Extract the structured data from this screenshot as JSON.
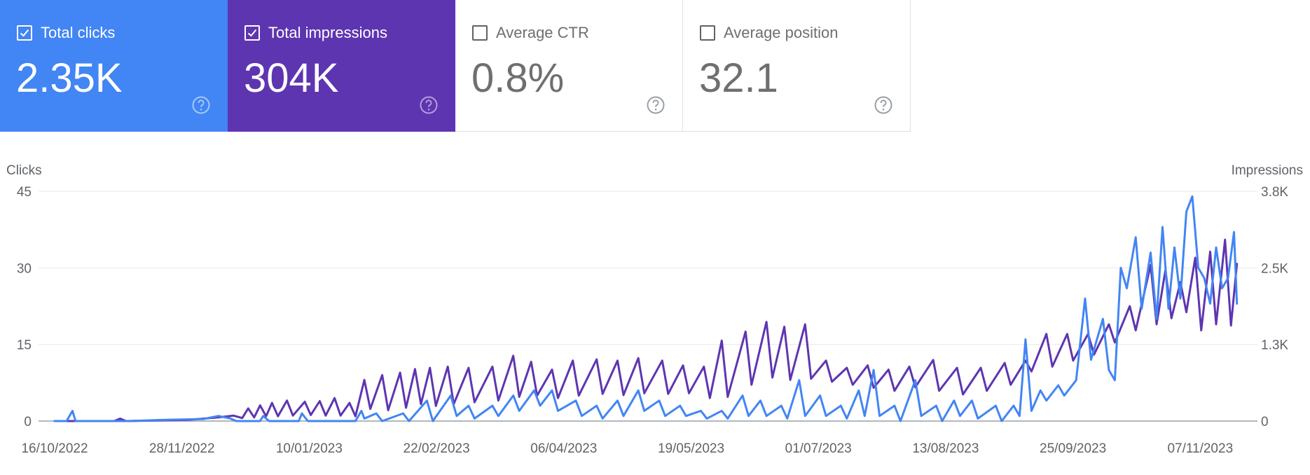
{
  "cards": [
    {
      "label": "Total clicks",
      "value": "2.35K",
      "checked": true,
      "color": "#4285f4"
    },
    {
      "label": "Total impressions",
      "value": "304K",
      "checked": true,
      "color": "#5e35b1"
    },
    {
      "label": "Average CTR",
      "value": "0.8%",
      "checked": false,
      "color": "#ffffff"
    },
    {
      "label": "Average position",
      "value": "32.1",
      "checked": false,
      "color": "#ffffff"
    }
  ],
  "chart_data": {
    "type": "line",
    "left_axis": {
      "title": "Clicks",
      "ticks": [
        "0",
        "15",
        "30",
        "45"
      ],
      "range": [
        0,
        45
      ]
    },
    "right_axis": {
      "title": "Impressions",
      "ticks": [
        "0",
        "1.3K",
        "2.5K",
        "3.8K"
      ],
      "range": [
        0,
        3800
      ]
    },
    "x_ticks": [
      "16/10/2022",
      "28/11/2022",
      "10/01/2023",
      "22/02/2023",
      "06/04/2023",
      "19/05/2023",
      "01/07/2023",
      "13/08/2023",
      "25/09/2023",
      "07/11/2023"
    ],
    "x_range": [
      "2022-10-16",
      "2023-11-18"
    ],
    "grid": true,
    "series": [
      {
        "name": "Total clicks",
        "axis": "left",
        "color": "#4285f4",
        "points": [
          [
            "2022-10-16",
            0
          ],
          [
            "2022-10-20",
            0
          ],
          [
            "2022-10-22",
            2
          ],
          [
            "2022-10-23",
            0
          ],
          [
            "2022-11-10",
            0
          ],
          [
            "2022-11-20",
            0.2
          ],
          [
            "2022-12-05",
            0.4
          ],
          [
            "2022-12-10",
            1
          ],
          [
            "2022-12-14",
            0.5
          ],
          [
            "2022-12-16",
            0
          ],
          [
            "2022-12-24",
            0
          ],
          [
            "2022-12-25",
            1
          ],
          [
            "2022-12-27",
            0
          ],
          [
            "2023-01-06",
            0
          ],
          [
            "2023-01-07",
            1.5
          ],
          [
            "2023-01-09",
            0
          ],
          [
            "2023-01-25",
            0
          ],
          [
            "2023-01-27",
            2
          ],
          [
            "2023-01-28",
            0.5
          ],
          [
            "2023-02-01",
            1.5
          ],
          [
            "2023-02-03",
            0
          ],
          [
            "2023-02-10",
            1.5
          ],
          [
            "2023-02-12",
            0
          ],
          [
            "2023-02-18",
            4
          ],
          [
            "2023-02-20",
            0
          ],
          [
            "2023-02-26",
            5
          ],
          [
            "2023-02-28",
            1
          ],
          [
            "2023-03-04",
            3
          ],
          [
            "2023-03-06",
            0.5
          ],
          [
            "2023-03-12",
            3
          ],
          [
            "2023-03-14",
            1
          ],
          [
            "2023-03-19",
            5
          ],
          [
            "2023-03-21",
            2
          ],
          [
            "2023-03-26",
            6
          ],
          [
            "2023-03-28",
            3
          ],
          [
            "2023-04-01",
            6
          ],
          [
            "2023-04-03",
            2
          ],
          [
            "2023-04-09",
            4
          ],
          [
            "2023-04-11",
            1
          ],
          [
            "2023-04-16",
            3
          ],
          [
            "2023-04-18",
            0.5
          ],
          [
            "2023-04-23",
            4
          ],
          [
            "2023-04-25",
            1
          ],
          [
            "2023-04-30",
            6
          ],
          [
            "2023-05-02",
            2
          ],
          [
            "2023-05-07",
            4
          ],
          [
            "2023-05-09",
            1
          ],
          [
            "2023-05-14",
            3
          ],
          [
            "2023-05-16",
            1
          ],
          [
            "2023-05-21",
            2
          ],
          [
            "2023-05-23",
            0.5
          ],
          [
            "2023-05-28",
            2
          ],
          [
            "2023-05-30",
            0.5
          ],
          [
            "2023-06-04",
            5
          ],
          [
            "2023-06-06",
            1
          ],
          [
            "2023-06-10",
            4
          ],
          [
            "2023-06-12",
            1
          ],
          [
            "2023-06-17",
            3
          ],
          [
            "2023-06-19",
            0.5
          ],
          [
            "2023-06-23",
            8
          ],
          [
            "2023-06-25",
            1
          ],
          [
            "2023-06-30",
            5
          ],
          [
            "2023-07-02",
            1
          ],
          [
            "2023-07-07",
            3
          ],
          [
            "2023-07-09",
            0.5
          ],
          [
            "2023-07-13",
            6
          ],
          [
            "2023-07-15",
            1
          ],
          [
            "2023-07-18",
            10
          ],
          [
            "2023-07-20",
            1
          ],
          [
            "2023-07-25",
            3
          ],
          [
            "2023-07-27",
            0
          ],
          [
            "2023-08-01",
            8
          ],
          [
            "2023-08-03",
            1
          ],
          [
            "2023-08-08",
            3
          ],
          [
            "2023-08-10",
            0
          ],
          [
            "2023-08-14",
            4
          ],
          [
            "2023-08-16",
            1
          ],
          [
            "2023-08-20",
            4
          ],
          [
            "2023-08-22",
            0.5
          ],
          [
            "2023-08-28",
            3
          ],
          [
            "2023-08-30",
            0
          ],
          [
            "2023-09-03",
            3
          ],
          [
            "2023-09-05",
            1
          ],
          [
            "2023-09-07",
            16
          ],
          [
            "2023-09-09",
            2
          ],
          [
            "2023-09-12",
            6
          ],
          [
            "2023-09-14",
            4
          ],
          [
            "2023-09-18",
            7
          ],
          [
            "2023-09-20",
            5
          ],
          [
            "2023-09-24",
            8
          ],
          [
            "2023-09-27",
            24
          ],
          [
            "2023-09-29",
            12
          ],
          [
            "2023-10-03",
            20
          ],
          [
            "2023-10-05",
            10
          ],
          [
            "2023-10-07",
            8
          ],
          [
            "2023-10-09",
            30
          ],
          [
            "2023-10-11",
            26
          ],
          [
            "2023-10-14",
            36
          ],
          [
            "2023-10-16",
            22
          ],
          [
            "2023-10-19",
            33
          ],
          [
            "2023-10-21",
            20
          ],
          [
            "2023-10-23",
            38
          ],
          [
            "2023-10-25",
            22
          ],
          [
            "2023-10-27",
            34
          ],
          [
            "2023-10-29",
            24
          ],
          [
            "2023-10-31",
            41
          ],
          [
            "2023-11-02",
            44
          ],
          [
            "2023-11-04",
            30
          ],
          [
            "2023-11-06",
            28
          ],
          [
            "2023-11-08",
            23
          ],
          [
            "2023-11-10",
            34
          ],
          [
            "2023-11-12",
            26
          ],
          [
            "2023-11-14",
            28
          ],
          [
            "2023-11-16",
            37
          ],
          [
            "2023-11-17",
            23
          ]
        ]
      },
      {
        "name": "Total impressions",
        "axis": "right",
        "color": "#5e35b1",
        "points": [
          [
            "2022-10-16",
            0
          ],
          [
            "2022-11-05",
            0
          ],
          [
            "2022-11-07",
            40
          ],
          [
            "2022-11-09",
            0
          ],
          [
            "2022-11-30",
            20
          ],
          [
            "2022-12-10",
            60
          ],
          [
            "2022-12-15",
            90
          ],
          [
            "2022-12-18",
            50
          ],
          [
            "2022-12-20",
            210
          ],
          [
            "2022-12-22",
            60
          ],
          [
            "2022-12-24",
            260
          ],
          [
            "2022-12-26",
            80
          ],
          [
            "2022-12-28",
            300
          ],
          [
            "2022-12-30",
            80
          ],
          [
            "2023-01-02",
            340
          ],
          [
            "2023-01-04",
            90
          ],
          [
            "2023-01-08",
            320
          ],
          [
            "2023-01-10",
            100
          ],
          [
            "2023-01-13",
            330
          ],
          [
            "2023-01-15",
            90
          ],
          [
            "2023-01-18",
            380
          ],
          [
            "2023-01-20",
            90
          ],
          [
            "2023-01-23",
            300
          ],
          [
            "2023-01-25",
            80
          ],
          [
            "2023-01-28",
            680
          ],
          [
            "2023-01-30",
            200
          ],
          [
            "2023-02-03",
            760
          ],
          [
            "2023-02-05",
            180
          ],
          [
            "2023-02-09",
            800
          ],
          [
            "2023-02-11",
            220
          ],
          [
            "2023-02-14",
            860
          ],
          [
            "2023-02-16",
            280
          ],
          [
            "2023-02-19",
            880
          ],
          [
            "2023-02-21",
            250
          ],
          [
            "2023-02-25",
            900
          ],
          [
            "2023-02-27",
            280
          ],
          [
            "2023-03-04",
            880
          ],
          [
            "2023-03-06",
            310
          ],
          [
            "2023-03-12",
            900
          ],
          [
            "2023-03-14",
            340
          ],
          [
            "2023-03-19",
            1080
          ],
          [
            "2023-03-21",
            400
          ],
          [
            "2023-03-25",
            980
          ],
          [
            "2023-03-27",
            420
          ],
          [
            "2023-04-01",
            850
          ],
          [
            "2023-04-03",
            380
          ],
          [
            "2023-04-08",
            1000
          ],
          [
            "2023-04-10",
            420
          ],
          [
            "2023-04-16",
            1020
          ],
          [
            "2023-04-18",
            450
          ],
          [
            "2023-04-23",
            1000
          ],
          [
            "2023-04-25",
            430
          ],
          [
            "2023-04-30",
            1040
          ],
          [
            "2023-05-02",
            460
          ],
          [
            "2023-05-08",
            1000
          ],
          [
            "2023-05-10",
            450
          ],
          [
            "2023-05-15",
            920
          ],
          [
            "2023-05-17",
            460
          ],
          [
            "2023-05-22",
            900
          ],
          [
            "2023-05-24",
            380
          ],
          [
            "2023-05-28",
            1330
          ],
          [
            "2023-05-30",
            400
          ],
          [
            "2023-06-05",
            1480
          ],
          [
            "2023-06-07",
            600
          ],
          [
            "2023-06-12",
            1640
          ],
          [
            "2023-06-14",
            720
          ],
          [
            "2023-06-18",
            1560
          ],
          [
            "2023-06-20",
            680
          ],
          [
            "2023-06-25",
            1600
          ],
          [
            "2023-06-27",
            700
          ],
          [
            "2023-07-02",
            1000
          ],
          [
            "2023-07-04",
            650
          ],
          [
            "2023-07-09",
            880
          ],
          [
            "2023-07-11",
            600
          ],
          [
            "2023-07-16",
            920
          ],
          [
            "2023-07-18",
            550
          ],
          [
            "2023-07-23",
            850
          ],
          [
            "2023-07-25",
            500
          ],
          [
            "2023-07-30",
            900
          ],
          [
            "2023-08-01",
            560
          ],
          [
            "2023-08-07",
            1010
          ],
          [
            "2023-08-09",
            500
          ],
          [
            "2023-08-15",
            880
          ],
          [
            "2023-08-17",
            440
          ],
          [
            "2023-08-23",
            880
          ],
          [
            "2023-08-25",
            500
          ],
          [
            "2023-08-31",
            960
          ],
          [
            "2023-09-02",
            600
          ],
          [
            "2023-09-07",
            1000
          ],
          [
            "2023-09-09",
            820
          ],
          [
            "2023-09-14",
            1440
          ],
          [
            "2023-09-16",
            900
          ],
          [
            "2023-09-21",
            1440
          ],
          [
            "2023-09-23",
            1000
          ],
          [
            "2023-09-28",
            1440
          ],
          [
            "2023-09-30",
            1100
          ],
          [
            "2023-10-05",
            1600
          ],
          [
            "2023-10-07",
            1300
          ],
          [
            "2023-10-12",
            1900
          ],
          [
            "2023-10-14",
            1500
          ],
          [
            "2023-10-19",
            2580
          ],
          [
            "2023-10-21",
            1600
          ],
          [
            "2023-10-24",
            2500
          ],
          [
            "2023-10-26",
            1700
          ],
          [
            "2023-10-29",
            2300
          ],
          [
            "2023-10-31",
            1800
          ],
          [
            "2023-11-03",
            2700
          ],
          [
            "2023-11-05",
            1500
          ],
          [
            "2023-11-08",
            2800
          ],
          [
            "2023-11-10",
            1600
          ],
          [
            "2023-11-13",
            3000
          ],
          [
            "2023-11-15",
            1580
          ],
          [
            "2023-11-17",
            2600
          ]
        ]
      }
    ]
  }
}
